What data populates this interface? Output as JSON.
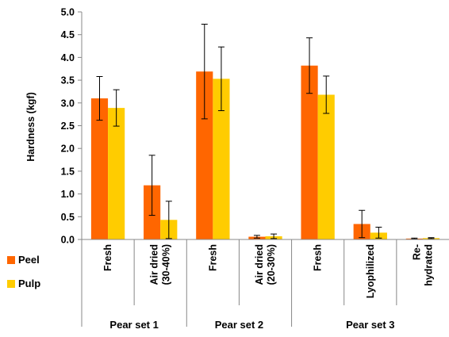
{
  "chart_data": {
    "type": "bar",
    "ylabel": "Hardness  (kgf)",
    "ylim": [
      0,
      5
    ],
    "yticks": [
      "0.0",
      "0.5",
      "1.0",
      "1.5",
      "2.0",
      "2.5",
      "3.0",
      "3.5",
      "4.0",
      "4.5",
      "5.0"
    ],
    "categories": [
      {
        "lines": [
          "Fresh"
        ],
        "group": 0
      },
      {
        "lines": [
          "Air dried",
          "(30-40%)"
        ],
        "group": 0
      },
      {
        "lines": [
          "Fresh"
        ],
        "group": 1
      },
      {
        "lines": [
          "Air dried",
          "(20-30%)"
        ],
        "group": 1
      },
      {
        "lines": [
          "Fresh"
        ],
        "group": 2
      },
      {
        "lines": [
          "Lyophilized"
        ],
        "group": 2
      },
      {
        "lines": [
          "Re-",
          "hydrated"
        ],
        "group": 2
      }
    ],
    "groups": [
      "Pear set 1",
      "Pear set 2",
      "Pear set 3"
    ],
    "series": [
      {
        "name": "Peel",
        "color": "#FF6600",
        "values": [
          3.1,
          1.19,
          3.69,
          0.06,
          3.82,
          0.34,
          0.02
        ],
        "errors": [
          0.48,
          0.66,
          1.04,
          0.03,
          0.61,
          0.3,
          0.01
        ]
      },
      {
        "name": "Pulp",
        "color": "#FFCC00",
        "values": [
          2.89,
          0.43,
          3.53,
          0.07,
          3.18,
          0.15,
          0.03
        ],
        "errors": [
          0.4,
          0.41,
          0.7,
          0.05,
          0.41,
          0.12,
          0.01
        ]
      }
    ],
    "grid": false,
    "legend": "left"
  }
}
